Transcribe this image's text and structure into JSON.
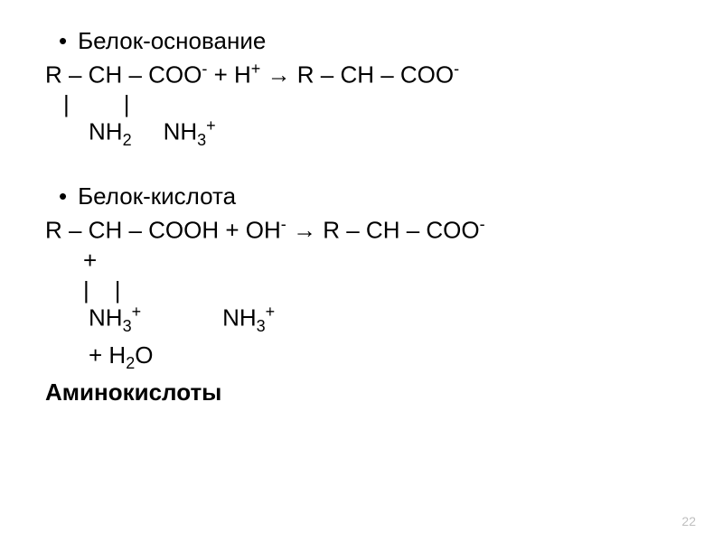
{
  "section1": {
    "heading": "Белок-основание",
    "equation": "R – CH – COO⁻ + H⁺ → R – CH – COO⁻",
    "vbars": " | ",
    "vbars2": "       |",
    "subline": "NH₂",
    "subline2": "NH₃⁺"
  },
  "section2": {
    "heading": "Белок-кислота",
    "equation_part1": "R – CH – COOH + OH⁻ → R – CH – COO⁻",
    "equation_part2": "+",
    "vbars": "|",
    "vbars2": "    |",
    "subline": "NH₃⁺",
    "subline2": "NH₃⁺",
    "lastline": "+ H₂O"
  },
  "footer": {
    "heading": "Аминокислоты"
  },
  "page_number": "22",
  "colors": {
    "background": "#ffffff",
    "text": "#000000",
    "page_num": "#bfbfbf"
  },
  "fonts": {
    "main_size": 26,
    "sub_size": 18,
    "pagenum_size": 14
  }
}
